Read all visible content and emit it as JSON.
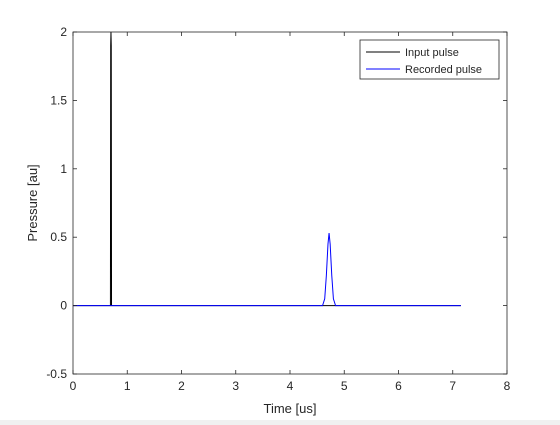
{
  "chart_data": {
    "type": "line",
    "xlabel": "Time [us]",
    "ylabel": "Pressure [au]",
    "xlim": [
      0,
      8
    ],
    "ylim": [
      -0.5,
      2
    ],
    "xticks": [
      0,
      1,
      2,
      3,
      4,
      5,
      6,
      7,
      8
    ],
    "yticks": [
      -0.5,
      0,
      0.5,
      1,
      1.5,
      2
    ],
    "xtick_labels": [
      "0",
      "1",
      "2",
      "3",
      "4",
      "5",
      "6",
      "7",
      "8"
    ],
    "ytick_labels": [
      "-0.5",
      "0",
      "0.5",
      "1",
      "1.5",
      "2"
    ],
    "grid": false,
    "legend_position": "top-right",
    "series": [
      {
        "name": "Input pulse",
        "color": "#000000",
        "x": [
          0,
          0.69,
          0.695,
          0.7,
          0.705,
          0.71,
          7.15
        ],
        "y": [
          0,
          0,
          1.9,
          2.0,
          1.9,
          0,
          0
        ]
      },
      {
        "name": "Recorded pulse",
        "color": "#0000ff",
        "x": [
          0,
          4.6,
          4.64,
          4.67,
          4.7,
          4.72,
          4.74,
          4.77,
          4.8,
          4.84,
          7.15
        ],
        "y": [
          0,
          0,
          0.05,
          0.22,
          0.45,
          0.53,
          0.45,
          0.22,
          0.05,
          0,
          0
        ]
      }
    ]
  }
}
